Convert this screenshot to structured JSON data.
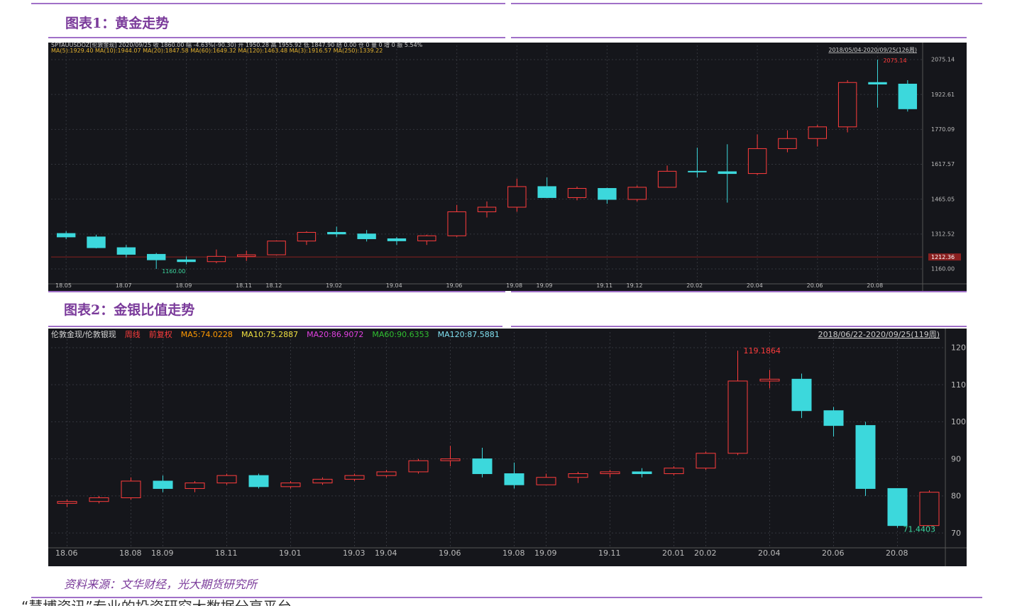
{
  "figure_titles": [
    "图表1：黄金走势",
    "图表2：金银比值走势"
  ],
  "source": "资料来源：文华财经，光大期货研究所",
  "footer": "“慧博资讯”专业的投资研究大数据分享平台",
  "chart_data": [
    {
      "type": "candlestick",
      "header": [
        {
          "text": "SPTAUUSDOZ[伦敦金现]   2020/09/25   收 1860.00   幅 -4.63%(-90.30)   开 1950.28   高 1955.92   低 1847.90   结 0.00   仓 0   量 0   增 0   振 5.54%",
          "color": "#c8c8c8"
        },
        {
          "text": "MA(5):1929.40  MA(10):1944.07  MA(20):1847.58  MA(60):1649.32  MA(120):1463.48  MA(3):1916.57  MA(250):1339.22",
          "color": "#e0b030"
        }
      ],
      "range_label": "2018/05/04-2020/09/25(126周)",
      "categories": [
        "18.05",
        null,
        "18.07",
        null,
        "18.09",
        null,
        "18.11",
        "18.12",
        null,
        "19.02",
        null,
        "19.04",
        null,
        "19.06",
        null,
        "19.08",
        "19.09",
        null,
        "19.11",
        "19.12",
        null,
        "20.02",
        null,
        "20.04",
        null,
        "20.06",
        null,
        "20.08",
        null
      ],
      "open": [
        1315,
        1300,
        1253,
        1224,
        1200,
        1192,
        1215,
        1222,
        1282,
        1320,
        1313,
        1292,
        1283,
        1305,
        1410,
        1430,
        1520,
        1472,
        1512,
        1464,
        1517,
        1587,
        1585,
        1577,
        1686,
        1730,
        1781,
        1975,
        1968
      ],
      "high": [
        1325,
        1310,
        1265,
        1230,
        1215,
        1245,
        1240,
        1285,
        1325,
        1345,
        1330,
        1300,
        1310,
        1440,
        1455,
        1555,
        1560,
        1520,
        1515,
        1525,
        1612,
        1690,
        1705,
        1748,
        1766,
        1790,
        1985,
        2075.14,
        1985
      ],
      "low": [
        1290,
        1250,
        1210,
        1160,
        1180,
        1185,
        1195,
        1220,
        1265,
        1300,
        1280,
        1265,
        1265,
        1300,
        1385,
        1410,
        1470,
        1460,
        1445,
        1455,
        1515,
        1560,
        1450,
        1570,
        1670,
        1695,
        1757,
        1865,
        1848
      ],
      "close": [
        1300,
        1253,
        1224,
        1200,
        1192,
        1215,
        1222,
        1282,
        1320,
        1313,
        1292,
        1283,
        1305,
        1410,
        1430,
        1520,
        1472,
        1512,
        1464,
        1517,
        1587,
        1585,
        1577,
        1686,
        1730,
        1781,
        1975,
        1968,
        1860
      ],
      "up_color": "#ff3c3c",
      "down_color": "#3cd8dc",
      "ylim": [
        1095,
        2137
      ],
      "yticks": [
        {
          "value": 1160,
          "label": "1160.00"
        },
        1312.52,
        1465.05,
        1617.57,
        1770.09,
        1922.61,
        2075.14
      ],
      "price_marker": 1212.36,
      "max_label": "2075.14",
      "min_label": "1160.00"
    },
    {
      "type": "candlestick",
      "header": [
        {
          "text": "伦敦金现/伦敦银现",
          "color": "#d8d8d8"
        },
        {
          "text": "周线",
          "color": "#ff3c3c"
        },
        {
          "text": "前复权",
          "color": "#ff3c3c"
        },
        {
          "text": "MA5:74.0228",
          "color": "#ff9a00"
        },
        {
          "text": "MA10:75.2887",
          "color": "#f0e040"
        },
        {
          "text": "MA20:86.9072",
          "color": "#e040e0"
        },
        {
          "text": "MA60:90.6353",
          "color": "#30c030"
        },
        {
          "text": "MA120:87.5881",
          "color": "#80e0f0"
        }
      ],
      "range_label": "2018/06/22-2020/09/25(119周)",
      "categories": [
        "18.06",
        null,
        "18.08",
        "18.09",
        null,
        "18.11",
        null,
        "19.01",
        null,
        "19.03",
        "19.04",
        null,
        "19.06",
        null,
        "19.08",
        "19.09",
        null,
        "19.11",
        null,
        "20.01",
        "20.02",
        null,
        "20.04",
        null,
        "20.06",
        null,
        "20.08",
        null
      ],
      "open": [
        78,
        78.5,
        79.5,
        84,
        82,
        83.5,
        85.5,
        82.5,
        83.5,
        84.5,
        85.5,
        86.5,
        89.5,
        90,
        86,
        83,
        85,
        86,
        86.5,
        86,
        87.5,
        91.5,
        111,
        111.5,
        103,
        99,
        82,
        72
      ],
      "high": [
        79,
        80,
        85,
        85.5,
        84,
        86,
        86,
        84,
        85,
        86,
        87,
        90,
        93.5,
        93,
        89,
        86,
        86.5,
        87,
        87.5,
        88,
        92,
        119.19,
        114,
        113,
        104,
        100,
        82,
        81.5
      ],
      "low": [
        77,
        78,
        79,
        81,
        81,
        83,
        82,
        82,
        83,
        84,
        85,
        86,
        88,
        85,
        82,
        83,
        83.5,
        85,
        85,
        85.5,
        87,
        91,
        109,
        101,
        96,
        80,
        71.44,
        72
      ],
      "close": [
        78.5,
        79.5,
        84,
        82,
        83.5,
        85.5,
        82.5,
        83.5,
        84.5,
        85.5,
        86.5,
        89.5,
        90,
        86,
        83,
        85,
        86,
        86.5,
        86,
        87.5,
        91.5,
        111,
        111.5,
        103,
        99,
        82,
        72,
        81
      ],
      "up_color": "#ff3c3c",
      "down_color": "#3cd8dc",
      "ylim": [
        66,
        124.2
      ],
      "yticks": [
        70,
        80,
        90,
        100,
        110,
        120
      ],
      "max_label": "119.1864",
      "min_label": "71.4403"
    }
  ]
}
